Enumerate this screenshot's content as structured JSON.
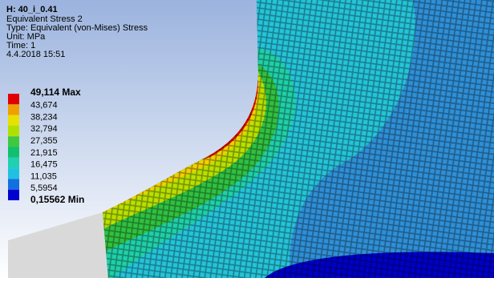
{
  "header": {
    "title": "H: 40_i_0.41",
    "lines": [
      "Equivalent Stress 2",
      "Type: Equivalent (von-Mises) Stress",
      "Unit: MPa",
      "Time: 1",
      "4.4.2018 15:51"
    ]
  },
  "legend": {
    "labels": [
      "49,114 Max",
      "43,674",
      "38,234",
      "32,794",
      "27,355",
      "21,915",
      "16,475",
      "11,035",
      "5,5954",
      "0,15562 Min"
    ],
    "colors": [
      "#e00000",
      "#f0a000",
      "#e8e000",
      "#b0e000",
      "#40c840",
      "#10c070",
      "#20d0b0",
      "#20c0e0",
      "#1070e0",
      "#0000d0"
    ]
  }
}
